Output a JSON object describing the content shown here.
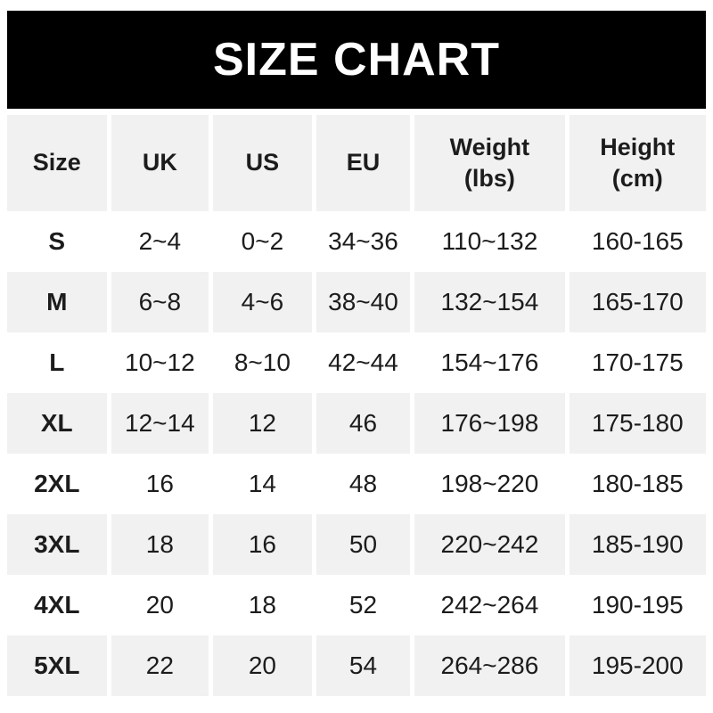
{
  "banner": {
    "title": "SIZE CHART",
    "bg_color": "#000000",
    "text_color": "#ffffff"
  },
  "chart_data": {
    "type": "table",
    "title": "SIZE CHART",
    "columns": [
      "Size",
      "UK",
      "US",
      "EU",
      "Weight\n(lbs)",
      "Height\n(cm)"
    ],
    "rows": [
      [
        "S",
        "2~4",
        "0~2",
        "34~36",
        "110~132",
        "160-165"
      ],
      [
        "M",
        "6~8",
        "4~6",
        "38~40",
        "132~154",
        "165-170"
      ],
      [
        "L",
        "10~12",
        "8~10",
        "42~44",
        "154~176",
        "170-175"
      ],
      [
        "XL",
        "12~14",
        "12",
        "46",
        "176~198",
        "175-180"
      ],
      [
        "2XL",
        "16",
        "14",
        "48",
        "198~220",
        "180-185"
      ],
      [
        "3XL",
        "18",
        "16",
        "50",
        "220~242",
        "185-190"
      ],
      [
        "4XL",
        "20",
        "18",
        "52",
        "242~264",
        "190-195"
      ],
      [
        "5XL",
        "22",
        "20",
        "54",
        "264~286",
        "195-200"
      ]
    ],
    "layout": {
      "header_bg": "#f1f1f1",
      "row_alt_bg": "#f1f1f1",
      "row_bg": "#ffffff",
      "text_color": "#1c1c1c",
      "alternating_rows": "S white, M gray, repeating"
    }
  }
}
